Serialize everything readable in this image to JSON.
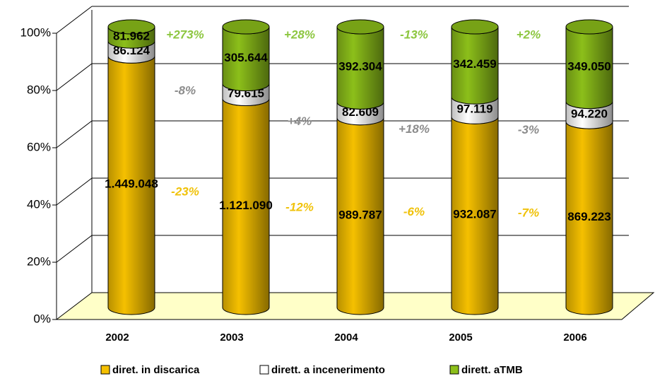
{
  "chart_data": {
    "type": "bar",
    "stacking": "percent",
    "categories": [
      "2002",
      "2003",
      "2004",
      "2005",
      "2006"
    ],
    "series": [
      {
        "name": "diret. in discarica",
        "color": "#f5c000",
        "label_color": "#f0c20a",
        "values": [
          1449048,
          1121090,
          989787,
          932087,
          869223
        ],
        "value_labels": [
          "1.449.048",
          "1.121.090",
          "989.787",
          "932.087",
          "869.223"
        ],
        "change_labels": [
          "-23%",
          "-12%",
          "-6%",
          "-7%"
        ]
      },
      {
        "name": "dirett. a incenerimento",
        "color": "#ffffff",
        "label_color": "#8c8c8c",
        "values": [
          86124,
          79615,
          82609,
          97119,
          94220
        ],
        "value_labels": [
          "86.124",
          "79.615",
          "82.609",
          "97.119",
          "94.220"
        ],
        "change_labels": [
          "-8%",
          "+4%",
          "+18%",
          "-3%"
        ]
      },
      {
        "name": "dirett. aTMB",
        "color": "#8cbf1a",
        "label_color": "#8cc63f",
        "values": [
          81962,
          305644,
          392304,
          342459,
          349050
        ],
        "value_labels": [
          "81.962",
          "305.644",
          "392.304",
          "342.459",
          "349.050"
        ],
        "change_labels": [
          "+273%",
          "+28%",
          "-13%",
          "+2%"
        ]
      }
    ],
    "ylim": [
      0,
      100
    ],
    "yticks": [
      {
        "value": 0,
        "label": "0%"
      },
      {
        "value": 20,
        "label": "20%"
      },
      {
        "value": 40,
        "label": "40%"
      },
      {
        "value": 60,
        "label": "60%"
      },
      {
        "value": 80,
        "label": "80%"
      },
      {
        "value": 100,
        "label": "100%"
      }
    ],
    "grid": true,
    "legend": "bottom"
  }
}
